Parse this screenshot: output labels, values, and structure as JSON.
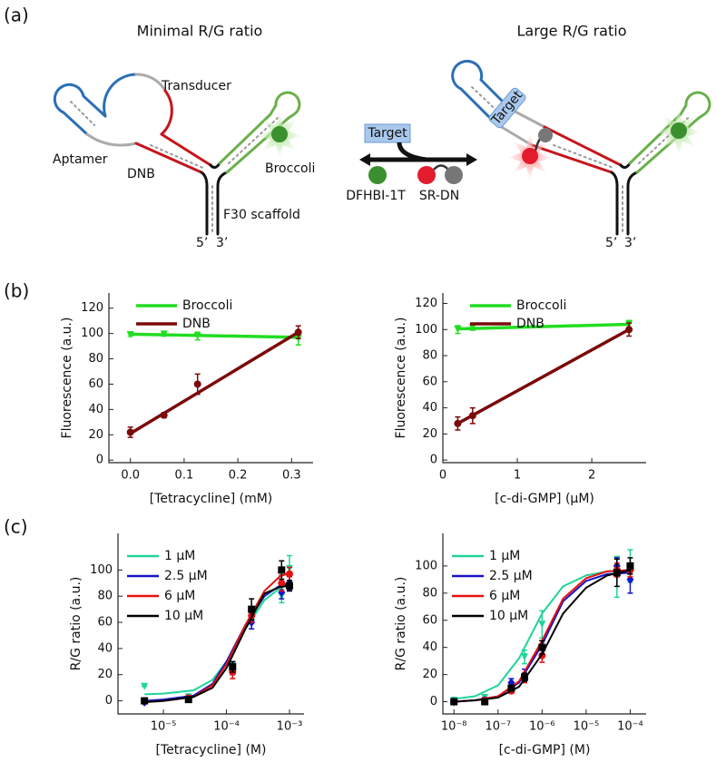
{
  "panel_labels": [
    "(a)",
    "(b)",
    "(c)"
  ],
  "diagram": {
    "left": {
      "title": "Minimal R/G ratio",
      "transducer": "Transducer",
      "aptamer": "Aptamer",
      "dnb": "DNB",
      "broccoli": "Broccoli",
      "scaffold": "F30 scaffold",
      "end5": "5’",
      "end3": "3’"
    },
    "middle": {
      "target": "Target",
      "dye_green": "DFHBI-1T",
      "dye_red": "SR-DN"
    },
    "right": {
      "title": "Large R/G ratio",
      "target": "Target",
      "end5": "5’",
      "end3": "3’"
    }
  },
  "chart_data": [
    {
      "type": "line",
      "xlabel": "[Tetracycline] (mM)",
      "ylabel": "Fluorescence (a.u.)",
      "xlim": [
        -0.04,
        0.34
      ],
      "ylim": [
        -2,
        132
      ],
      "xticks": [
        {
          "value": 0,
          "label": "0.0"
        },
        0.1,
        0.2,
        0.3
      ],
      "yticks": [
        0,
        20,
        40,
        60,
        80,
        100,
        120
      ],
      "legend": "upper left",
      "series": [
        {
          "name": "Broccoli",
          "color": "#22dd22",
          "marker": "triangle-down",
          "x": [
            0,
            0.0625,
            0.125,
            0.3125
          ],
          "values": [
            99,
            99.5,
            98,
            96
          ],
          "errors": [
            1,
            1.5,
            3,
            5
          ],
          "fit_x": [
            0,
            0.3125
          ],
          "fit_values": [
            99.5,
            97
          ]
        },
        {
          "name": "DNB",
          "color": "#7b0a0a",
          "marker": "circle",
          "x": [
            0,
            0.0625,
            0.125,
            0.3125
          ],
          "values": [
            22,
            35.5,
            60,
            101
          ],
          "errors": [
            4,
            2,
            8,
            5
          ],
          "fit_x": [
            0,
            0.3125
          ],
          "fit_values": [
            21,
            101
          ]
        }
      ]
    },
    {
      "type": "line",
      "xlabel": "[c-di-GMP] (μM)",
      "ylabel": "Fluorescence (a.u.)",
      "xlim": [
        0,
        2.73
      ],
      "ylim": [
        -2,
        128
      ],
      "xticks": [
        0,
        1,
        2
      ],
      "yticks": [
        0,
        20,
        40,
        60,
        80,
        100,
        120
      ],
      "legend": "upper left",
      "series": [
        {
          "name": "Broccoli",
          "color": "#22dd22",
          "marker": "triangle-down",
          "x": [
            0.2,
            0.4,
            2.5
          ],
          "values": [
            100,
            101.5,
            104
          ],
          "errors": [
            3,
            2,
            3
          ],
          "fit_x": [
            0.2,
            2.5
          ],
          "fit_values": [
            100.5,
            104
          ]
        },
        {
          "name": "DNB",
          "color": "#7b0a0a",
          "marker": "circle",
          "x": [
            0.2,
            0.4,
            2.5
          ],
          "values": [
            28,
            34,
            100
          ],
          "errors": [
            5,
            6,
            5
          ],
          "fit_x": [
            0.2,
            2.5
          ],
          "fit_values": [
            28,
            100
          ]
        }
      ]
    },
    {
      "type": "line",
      "xscale": "log",
      "xlabel": "[Tetracycline] (M)",
      "ylabel": "R/G ratio (a.u.)",
      "xlim": [
        1.9e-06,
        0.0017
      ],
      "ylim": [
        -10,
        128
      ],
      "xticks": [
        {
          "value": 1e-05,
          "label": "10⁻⁵"
        },
        {
          "value": 0.0001,
          "label": "10⁻⁴"
        },
        {
          "value": 0.001,
          "label": "10⁻³"
        }
      ],
      "yticks": [
        0,
        20,
        40,
        60,
        80,
        100
      ],
      "legend": "upper left",
      "series": [
        {
          "name": "1 μM",
          "color": "#20d49a",
          "marker": "triangle-down",
          "x": [
            5e-06,
            2.5e-05,
            0.000125,
            0.00025,
            0.00075,
            0.001
          ],
          "values": [
            11,
            3,
            27,
            60,
            80,
            101
          ],
          "errors": [
            0,
            2,
            3,
            5,
            5,
            10
          ],
          "fit_x": [
            5e-06,
            1e-05,
            3e-05,
            6e-05,
            0.0001,
            0.0002,
            0.0004,
            0.0007,
            0.001
          ],
          "fit_values": [
            5,
            5.5,
            8,
            16,
            30,
            55,
            77,
            86,
            89
          ]
        },
        {
          "name": "2.5 μM",
          "color": "#1414c8",
          "marker": "diamond",
          "x": [
            5e-06,
            2.5e-05,
            0.000125,
            0.00025,
            0.00075,
            0.001
          ],
          "values": [
            -1,
            2,
            25,
            60,
            83,
            90
          ],
          "errors": [
            0,
            2,
            5,
            5,
            5,
            5
          ],
          "fit_x": [
            5e-06,
            1e-05,
            3e-05,
            6e-05,
            0.0001,
            0.0002,
            0.0004,
            0.0007,
            0.001
          ],
          "fit_values": [
            0,
            1,
            4,
            13,
            30,
            58,
            80,
            88,
            90
          ]
        },
        {
          "name": "6 μM",
          "color": "#e81010",
          "marker": "circle",
          "x": [
            5e-06,
            2.5e-05,
            0.000125,
            0.00025,
            0.00075,
            0.001
          ],
          "values": [
            0,
            2,
            22,
            65,
            90,
            97
          ],
          "errors": [
            0,
            2,
            5,
            5,
            6,
            5
          ],
          "fit_x": [
            5e-06,
            1e-05,
            3e-05,
            6e-05,
            0.0001,
            0.0002,
            0.0004,
            0.0007,
            0.001
          ],
          "fit_values": [
            -1,
            0,
            3,
            12,
            28,
            58,
            84,
            95,
            98
          ]
        },
        {
          "name": "10 μM",
          "color": "#000000",
          "marker": "square",
          "x": [
            5e-06,
            2.5e-05,
            0.000125,
            0.00025,
            0.00075,
            0.001
          ],
          "values": [
            0,
            1,
            26,
            70,
            100,
            88
          ],
          "errors": [
            0,
            2,
            4,
            8,
            7,
            4
          ],
          "fit_x": [
            5e-06,
            1e-05,
            3e-05,
            6e-05,
            0.0001,
            0.0002,
            0.0004,
            0.0007,
            0.001
          ],
          "fit_values": [
            -1,
            0,
            3,
            10,
            25,
            55,
            82,
            87,
            88
          ]
        }
      ]
    },
    {
      "type": "line",
      "xscale": "log",
      "xlabel": "[c-di-GMP] (M)",
      "ylabel": "R/G ratio (a.u.)",
      "xlim": [
        5.6e-09,
        0.00023
      ],
      "ylim": [
        -9,
        124
      ],
      "xticks": [
        {
          "value": 1e-08,
          "label": "10⁻⁸"
        },
        {
          "value": 1e-07,
          "label": "10⁻⁷"
        },
        {
          "value": 1e-06,
          "label": "10⁻⁶"
        },
        {
          "value": 1e-05,
          "label": "10⁻⁵"
        },
        {
          "value": 0.0001,
          "label": "10⁻⁴"
        }
      ],
      "yticks": [
        0,
        20,
        40,
        60,
        80,
        100
      ],
      "legend": "upper left",
      "series": [
        {
          "name": "1 μM",
          "color": "#20d49a",
          "marker": "triangle-down",
          "x": [
            1e-08,
            5e-08,
            2e-07,
            4e-07,
            1e-06,
            5e-05,
            0.0001
          ],
          "values": [
            1,
            3,
            12,
            33,
            57,
            92,
            100
          ],
          "errors": [
            0,
            2,
            3,
            5,
            10,
            15,
            12
          ],
          "fit_x": [
            1e-08,
            3e-08,
            1e-07,
            3e-07,
            1e-06,
            3e-06,
            1e-05,
            3e-05,
            0.0001
          ],
          "fit_values": [
            2,
            4,
            12,
            32,
            65,
            85,
            93,
            96,
            97
          ]
        },
        {
          "name": "2.5 μM",
          "color": "#1414c8",
          "marker": "diamond",
          "x": [
            1e-08,
            5e-08,
            2e-07,
            4e-07,
            1e-06,
            5e-05,
            0.0001
          ],
          "values": [
            0,
            1,
            14,
            20,
            40,
            100,
            90
          ],
          "errors": [
            0,
            2,
            3,
            4,
            5,
            6,
            10
          ],
          "fit_x": [
            1e-08,
            3e-08,
            1e-07,
            3e-07,
            1e-06,
            3e-06,
            1e-05,
            3e-05,
            0.0001
          ],
          "fit_values": [
            0,
            1,
            4,
            14,
            42,
            74,
            89,
            94,
            95
          ]
        },
        {
          "name": "6 μM",
          "color": "#e81010",
          "marker": "circle",
          "x": [
            1e-08,
            5e-08,
            2e-07,
            4e-07,
            1e-06,
            5e-05,
            0.0001
          ],
          "values": [
            0,
            1,
            8,
            17,
            34,
            97,
            97
          ],
          "errors": [
            0,
            1,
            2,
            3,
            5,
            5,
            5
          ],
          "fit_x": [
            1e-08,
            3e-08,
            1e-07,
            3e-07,
            1e-06,
            3e-06,
            1e-05,
            3e-05,
            0.0001
          ],
          "fit_values": [
            0,
            1,
            4,
            15,
            45,
            76,
            91,
            96,
            97
          ]
        },
        {
          "name": "10 μM",
          "color": "#000000",
          "marker": "square",
          "x": [
            1e-08,
            5e-08,
            2e-07,
            4e-07,
            1e-06,
            5e-05,
            0.0001
          ],
          "values": [
            0,
            0,
            10,
            18,
            40,
            95,
            100
          ],
          "errors": [
            0,
            1,
            2,
            3,
            5,
            10,
            6
          ],
          "fit_x": [
            1e-08,
            3e-08,
            1e-07,
            3e-07,
            1e-06,
            3e-06,
            1e-05,
            3e-05,
            0.0001
          ],
          "fit_values": [
            0,
            1,
            3,
            11,
            35,
            65,
            84,
            93,
            97
          ]
        }
      ]
    }
  ]
}
